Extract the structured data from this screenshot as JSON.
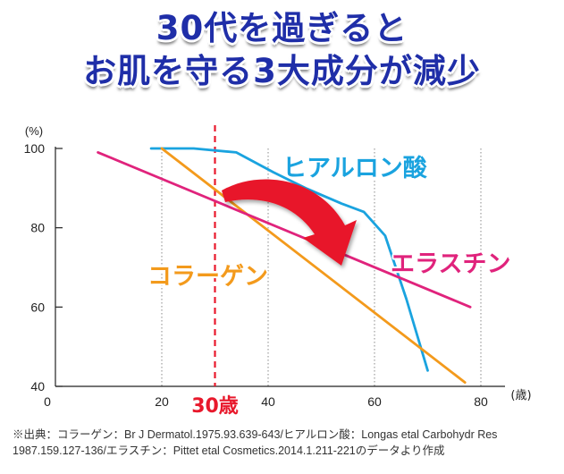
{
  "title": {
    "line1": "30代を過ぎると",
    "line2": "お肌を守る3大成分が減少"
  },
  "chart_data": {
    "type": "line",
    "yunit": "(%)",
    "xunit": "(歳)",
    "xlim": [
      0,
      80
    ],
    "ylim": [
      40,
      100
    ],
    "xticks": [
      0,
      20,
      40,
      60,
      80
    ],
    "yticks": [
      100,
      80,
      60,
      40
    ],
    "grid": "vertical-dotted",
    "series": [
      {
        "name": "ヒアルロン酸",
        "color": "#1aa3df",
        "x": [
          18,
          26,
          34,
          41,
          47,
          54,
          58,
          62,
          66,
          70
        ],
        "y": [
          100,
          100,
          99,
          94,
          90,
          86,
          84,
          78,
          62,
          44
        ]
      },
      {
        "name": "コラーゲン",
        "color": "#f39a1c",
        "x": [
          20,
          77
        ],
        "y": [
          100,
          41
        ]
      },
      {
        "name": "エラスチン",
        "color": "#e0237c",
        "x": [
          8,
          78
        ],
        "y": [
          99,
          60
        ]
      }
    ],
    "marker": {
      "x": 30,
      "label": "30歳",
      "color": "#e8192c"
    }
  },
  "footnote": {
    "line1": "※出典：コラーゲン：Br J Dermatol.1975.93.639-643/ヒアルロン酸：Longas etal Carbohydr Res",
    "line2": "1987.159.127-136/エラスチン：Pittet etal Cosmetics.2014.1.211-221のデータより作成"
  }
}
